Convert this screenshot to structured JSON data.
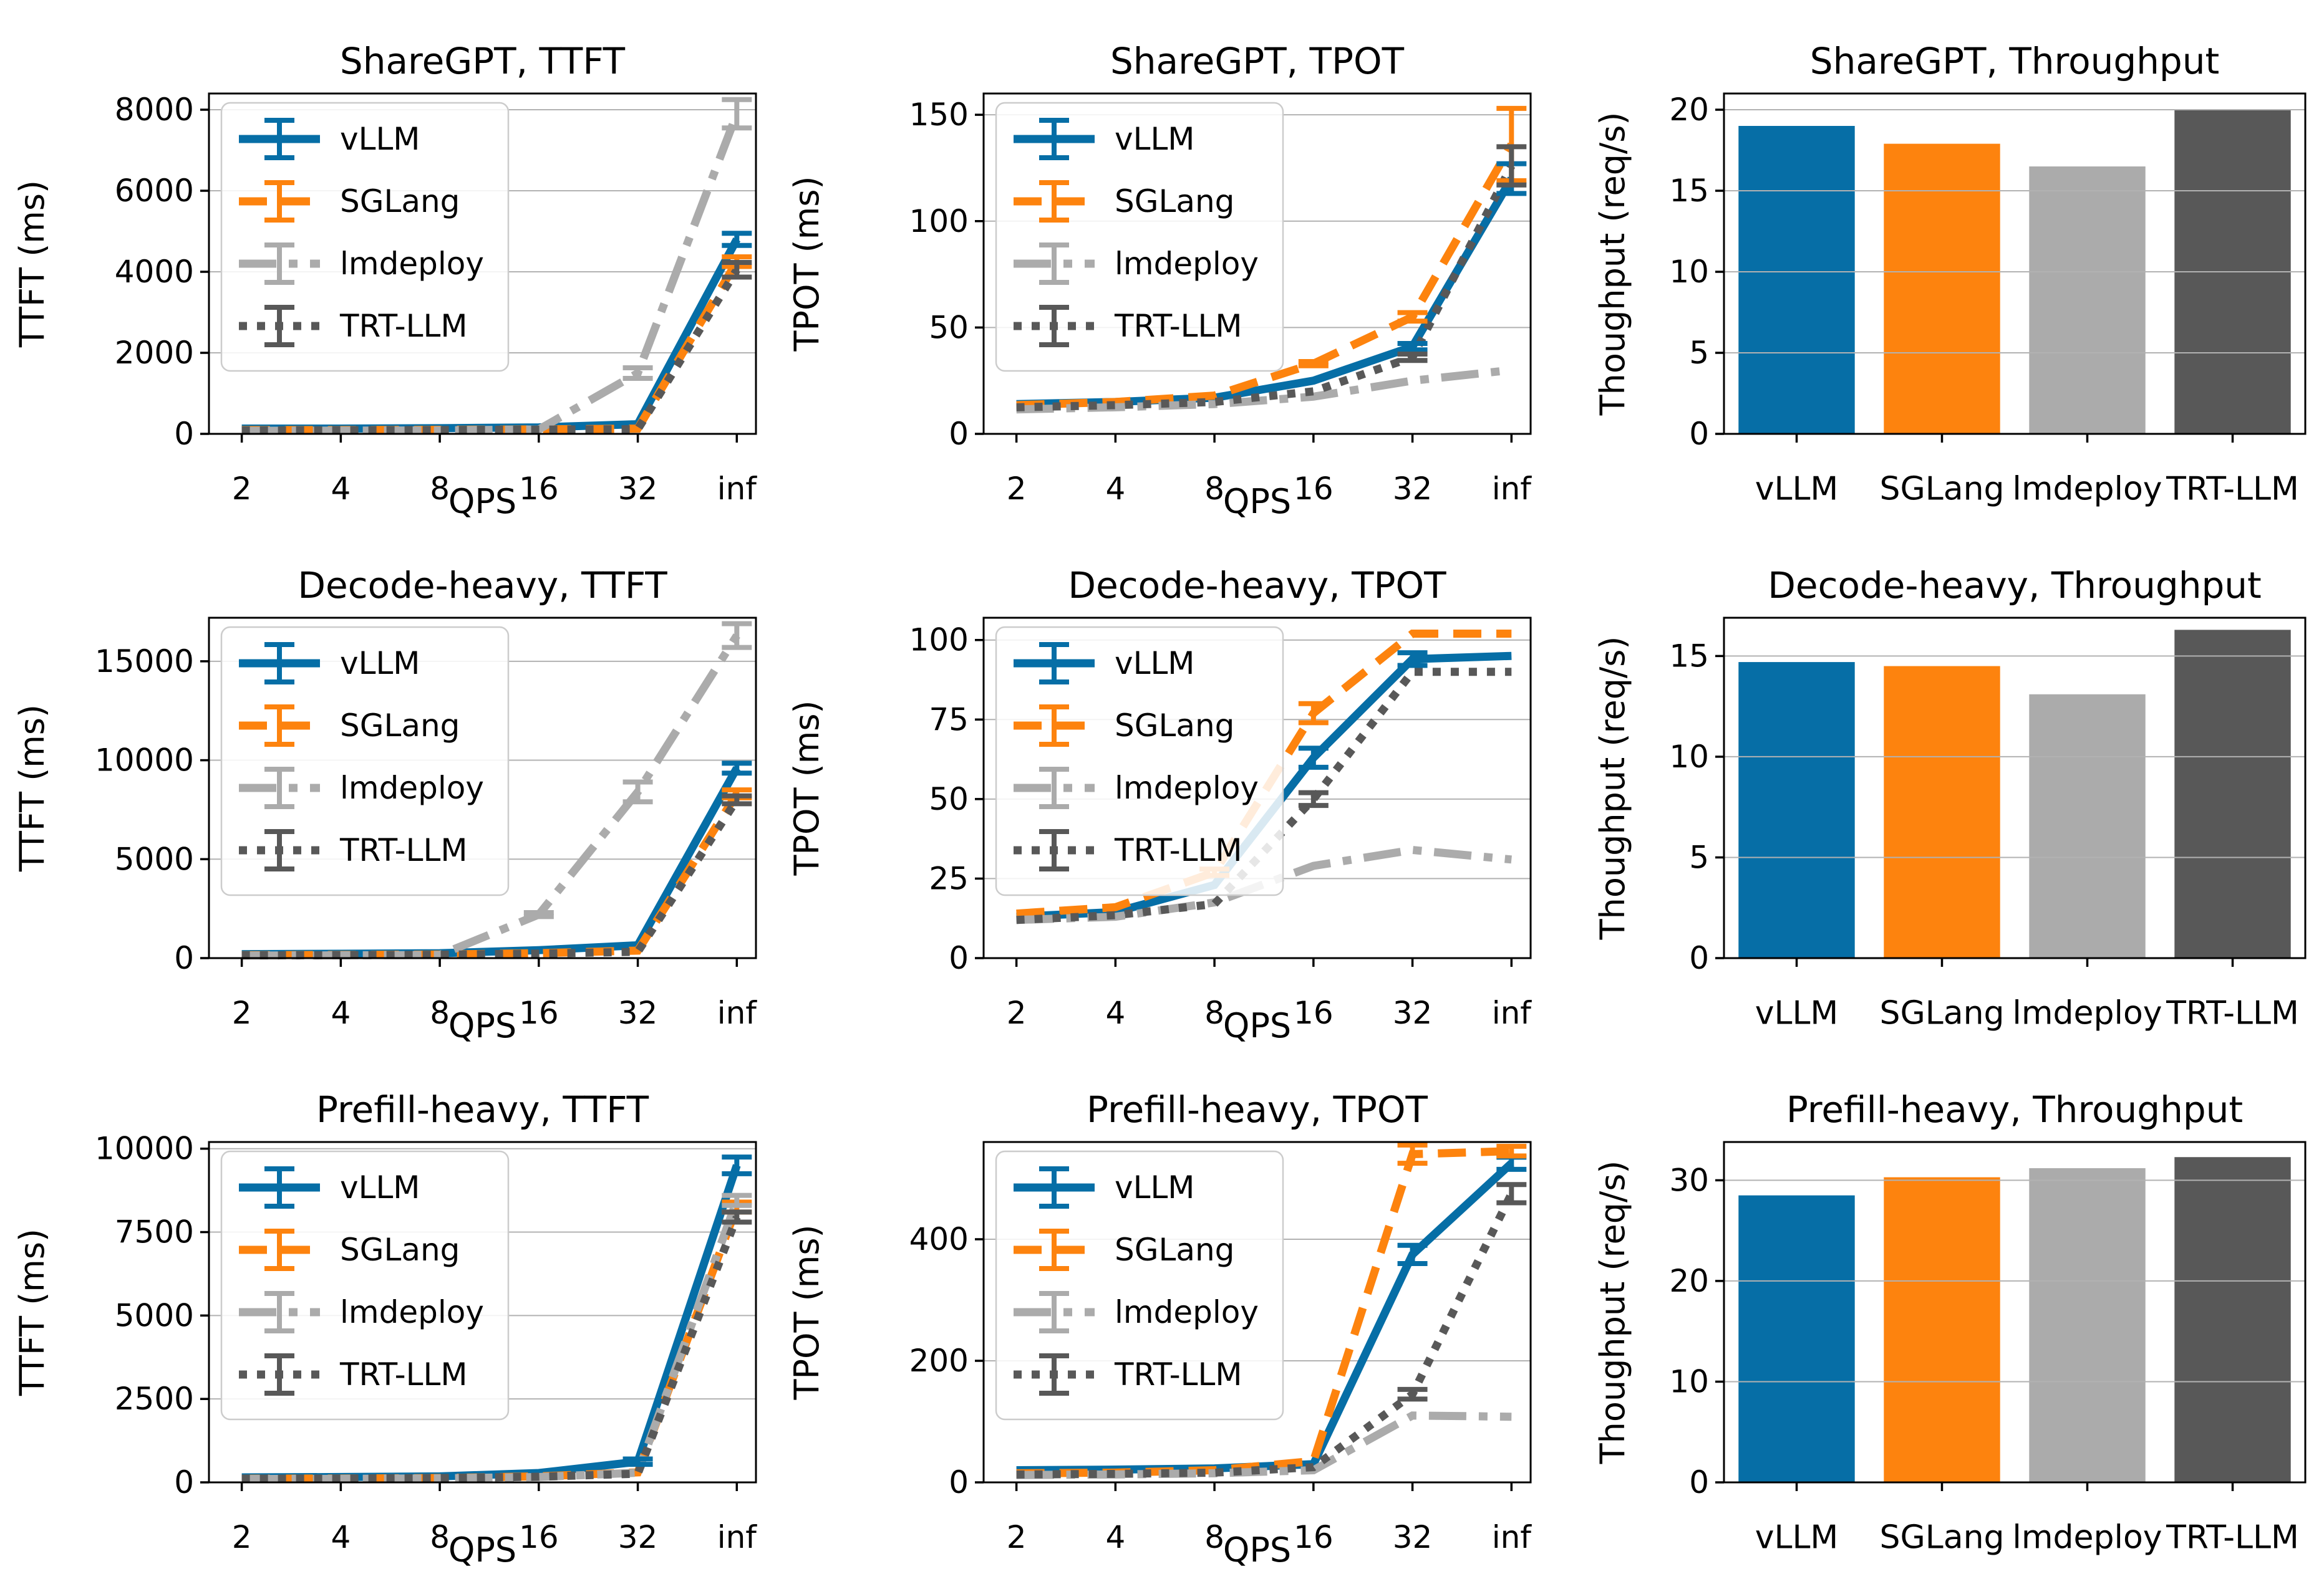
{
  "figure": {
    "background": "#ffffff",
    "frame_color": "#000000",
    "grid_color": "#b2b2b2",
    "text_color": "#000000",
    "legend_border_color": "#cccccc"
  },
  "series_styles": [
    {
      "label": "vLLM",
      "color": "#066EA6",
      "dash": "solid"
    },
    {
      "label": "SGLang",
      "color": "#FD830E",
      "dash": "dashed"
    },
    {
      "label": "lmdeploy",
      "color": "#ABABAB",
      "dash": "dashdot"
    },
    {
      "label": "TRT-LLM",
      "color": "#585858",
      "dash": "dotted"
    }
  ],
  "chart_data": [
    {
      "type": "line",
      "title": "ShareGPT, TTFT",
      "xlabel": "QPS",
      "ylabel": "TTFT (ms)",
      "x_categories": [
        "2",
        "4",
        "8",
        "16",
        "32",
        "inf"
      ],
      "yticks": [
        0,
        2000,
        4000,
        6000,
        8000
      ],
      "ylim": [
        0,
        8400
      ],
      "grid": true,
      "legend": true,
      "series": [
        {
          "name": "vLLM",
          "values": [
            130,
            130,
            140,
            160,
            240,
            4800
          ],
          "yerr": [
            0,
            0,
            0,
            0,
            0,
            150
          ]
        },
        {
          "name": "SGLang",
          "values": [
            95,
            95,
            100,
            110,
            130,
            4250
          ],
          "yerr": [
            0,
            0,
            0,
            0,
            0,
            120
          ]
        },
        {
          "name": "lmdeploy",
          "values": [
            75,
            80,
            85,
            110,
            1500,
            7900
          ],
          "yerr": [
            0,
            0,
            0,
            0,
            130,
            350
          ]
        },
        {
          "name": "TRT-LLM",
          "values": [
            85,
            90,
            95,
            105,
            115,
            4050
          ],
          "yerr": [
            0,
            0,
            0,
            0,
            0,
            180
          ]
        }
      ]
    },
    {
      "type": "line",
      "title": "ShareGPT, TPOT",
      "xlabel": "QPS",
      "ylabel": "TPOT (ms)",
      "x_categories": [
        "2",
        "4",
        "8",
        "16",
        "32",
        "inf"
      ],
      "yticks": [
        0,
        50,
        100,
        150
      ],
      "ylim": [
        0,
        160
      ],
      "grid": true,
      "legend": true,
      "series": [
        {
          "name": "vLLM",
          "values": [
            14,
            15,
            17,
            25,
            41,
            120
          ],
          "yerr": [
            0,
            0,
            0,
            0,
            1.5,
            7
          ]
        },
        {
          "name": "SGLang",
          "values": [
            13.5,
            15,
            18,
            33,
            55,
            136
          ],
          "yerr": [
            0,
            0,
            0,
            1,
            2,
            17
          ]
        },
        {
          "name": "lmdeploy",
          "values": [
            11.5,
            12.5,
            14,
            17.5,
            25,
            30
          ],
          "yerr": [
            0,
            0,
            0,
            0,
            0,
            0
          ]
        },
        {
          "name": "TRT-LLM",
          "values": [
            12.5,
            13.5,
            15,
            20,
            36,
            126
          ],
          "yerr": [
            0,
            0,
            0,
            0,
            1.5,
            9
          ]
        }
      ]
    },
    {
      "type": "bar",
      "title": "ShareGPT, Throughput",
      "xlabel": "",
      "ylabel": "Thoughput (req/s)",
      "categories": [
        "vLLM",
        "SGLang",
        "lmdeploy",
        "TRT-LLM"
      ],
      "values": [
        19.0,
        17.9,
        16.5,
        20.0
      ],
      "yticks": [
        0,
        5,
        10,
        15,
        20
      ],
      "ylim": [
        0,
        21
      ],
      "grid": true
    },
    {
      "type": "line",
      "title": "Decode-heavy, TTFT",
      "xlabel": "QPS",
      "ylabel": "TTFT (ms)",
      "x_categories": [
        "2",
        "4",
        "8",
        "16",
        "32",
        "inf"
      ],
      "yticks": [
        0,
        5000,
        10000,
        15000
      ],
      "ylim": [
        0,
        17200
      ],
      "grid": true,
      "legend": true,
      "series": [
        {
          "name": "vLLM",
          "values": [
            200,
            220,
            250,
            400,
            650,
            9600
          ],
          "yerr": [
            0,
            0,
            0,
            0,
            0,
            250
          ]
        },
        {
          "name": "SGLang",
          "values": [
            150,
            160,
            180,
            250,
            380,
            8300
          ],
          "yerr": [
            0,
            0,
            0,
            0,
            0,
            200
          ]
        },
        {
          "name": "lmdeploy",
          "values": [
            130,
            140,
            160,
            2200,
            8400,
            16300
          ],
          "yerr": [
            0,
            0,
            0,
            100,
            500,
            600
          ]
        },
        {
          "name": "TRT-LLM",
          "values": [
            140,
            150,
            170,
            230,
            320,
            8000
          ],
          "yerr": [
            0,
            0,
            0,
            0,
            0,
            200
          ]
        }
      ]
    },
    {
      "type": "line",
      "title": "Decode-heavy, TPOT",
      "xlabel": "QPS",
      "ylabel": "TPOT (ms)",
      "x_categories": [
        "2",
        "4",
        "8",
        "16",
        "32",
        "inf"
      ],
      "yticks": [
        0,
        25,
        50,
        75,
        100
      ],
      "ylim": [
        0,
        107
      ],
      "grid": true,
      "legend": true,
      "series": [
        {
          "name": "vLLM",
          "values": [
            13,
            14.5,
            23,
            63,
            94,
            95
          ],
          "yerr": [
            0,
            0,
            0,
            3,
            2,
            0
          ]
        },
        {
          "name": "SGLang",
          "values": [
            14,
            16,
            27,
            77,
            102,
            102
          ],
          "yerr": [
            0,
            0,
            1,
            3,
            0,
            0
          ]
        },
        {
          "name": "lmdeploy",
          "values": [
            12,
            13,
            17.5,
            29,
            34,
            31
          ],
          "yerr": [
            0,
            0,
            0,
            0,
            0,
            0
          ]
        },
        {
          "name": "TRT-LLM",
          "values": [
            12,
            13.5,
            17,
            50,
            90,
            90
          ],
          "yerr": [
            0,
            0,
            0,
            2,
            0,
            0
          ]
        }
      ]
    },
    {
      "type": "bar",
      "title": "Decode-heavy, Throughput",
      "xlabel": "",
      "ylabel": "Thoughput (req/s)",
      "categories": [
        "vLLM",
        "SGLang",
        "lmdeploy",
        "TRT-LLM"
      ],
      "values": [
        14.7,
        14.5,
        13.1,
        16.3
      ],
      "yticks": [
        0,
        5,
        10,
        15
      ],
      "ylim": [
        0,
        16.9
      ],
      "grid": true
    },
    {
      "type": "line",
      "title": "Prefill-heavy, TTFT",
      "xlabel": "QPS",
      "ylabel": "TTFT (ms)",
      "x_categories": [
        "2",
        "4",
        "8",
        "16",
        "32",
        "inf"
      ],
      "yticks": [
        0,
        2500,
        5000,
        7500,
        10000
      ],
      "ylim": [
        0,
        10200
      ],
      "grid": true,
      "legend": true,
      "series": [
        {
          "name": "vLLM",
          "values": [
            150,
            160,
            180,
            280,
            620,
            9500
          ],
          "yerr": [
            0,
            0,
            0,
            0,
            80,
            250
          ]
        },
        {
          "name": "SGLang",
          "values": [
            110,
            115,
            130,
            180,
            300,
            8250
          ],
          "yerr": [
            0,
            0,
            0,
            0,
            0,
            150
          ]
        },
        {
          "name": "lmdeploy",
          "values": [
            100,
            105,
            120,
            160,
            290,
            8450
          ],
          "yerr": [
            0,
            0,
            0,
            0,
            0,
            150
          ]
        },
        {
          "name": "TRT-LLM",
          "values": [
            110,
            115,
            130,
            170,
            260,
            7950
          ],
          "yerr": [
            0,
            0,
            0,
            0,
            0,
            150
          ]
        }
      ]
    },
    {
      "type": "line",
      "title": "Prefill-heavy, TPOT",
      "xlabel": "QPS",
      "ylabel": "TPOT (ms)",
      "x_categories": [
        "2",
        "4",
        "8",
        "16",
        "32",
        "inf"
      ],
      "yticks": [
        0,
        200,
        400
      ],
      "ylim": [
        0,
        560
      ],
      "grid": true,
      "legend": true,
      "series": [
        {
          "name": "vLLM",
          "values": [
            20,
            21,
            23,
            30,
            375,
            525
          ],
          "yerr": [
            0,
            0,
            0,
            0,
            15,
            10
          ]
        },
        {
          "name": "SGLang",
          "values": [
            15,
            16,
            20,
            35,
            540,
            545
          ],
          "yerr": [
            0,
            0,
            0,
            0,
            15,
            8
          ]
        },
        {
          "name": "lmdeploy",
          "values": [
            12,
            13,
            15,
            20,
            110,
            108
          ],
          "yerr": [
            0,
            0,
            0,
            0,
            0,
            0
          ]
        },
        {
          "name": "TRT-LLM",
          "values": [
            13,
            14,
            16,
            25,
            145,
            475
          ],
          "yerr": [
            0,
            0,
            0,
            0,
            8,
            15
          ]
        }
      ]
    },
    {
      "type": "bar",
      "title": "Prefill-heavy, Throughput",
      "xlabel": "",
      "ylabel": "Thoughput (req/s)",
      "categories": [
        "vLLM",
        "SGLang",
        "lmdeploy",
        "TRT-LLM"
      ],
      "values": [
        28.5,
        30.3,
        31.2,
        32.3
      ],
      "yticks": [
        0,
        10,
        20,
        30
      ],
      "ylim": [
        0,
        33.8
      ],
      "grid": true
    }
  ]
}
